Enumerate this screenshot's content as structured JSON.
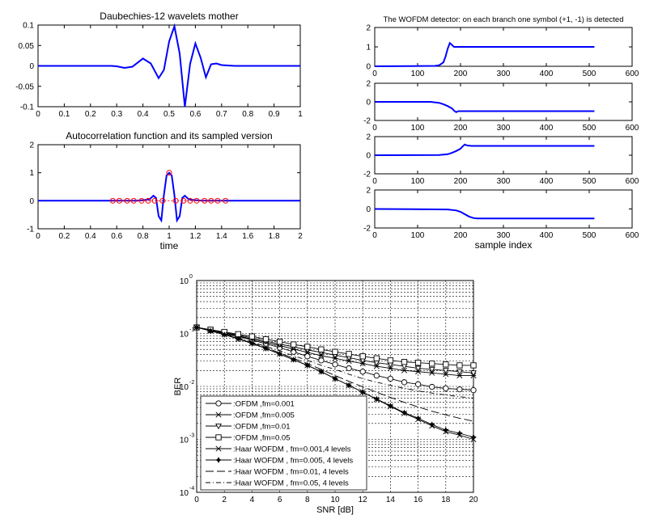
{
  "chart_data": [
    {
      "type": "line",
      "title": "Daubechies-12 wavelets mother",
      "xlim": [
        0,
        1
      ],
      "ylim": [
        -0.1,
        0.1
      ],
      "xticks": [
        "0",
        "0.1",
        "0.2",
        "0.3",
        "0.4",
        "0.5",
        "0.6",
        "0.7",
        "0.8",
        "0.9",
        "1"
      ],
      "yticks": [
        "-0.1",
        "-0.05",
        "0",
        "0.05",
        "0.1"
      ],
      "series": [
        {
          "color": "#0000ff",
          "x": [
            0,
            0.28,
            0.3,
            0.33,
            0.36,
            0.4,
            0.43,
            0.46,
            0.48,
            0.5,
            0.52,
            0.54,
            0.56,
            0.58,
            0.6,
            0.62,
            0.64,
            0.66,
            0.68,
            0.7,
            0.75,
            1
          ],
          "y": [
            0,
            0,
            -0.001,
            -0.005,
            -0.002,
            0.018,
            0.006,
            -0.03,
            -0.01,
            0.06,
            0.097,
            0.03,
            -0.1,
            0.005,
            0.055,
            0.02,
            -0.028,
            0.004,
            0.006,
            0.002,
            0,
            0
          ]
        }
      ]
    },
    {
      "type": "line",
      "title": "Autocorrelation function and its sampled version",
      "xlabel": "time",
      "xlim": [
        0,
        2
      ],
      "ylim": [
        -1,
        2
      ],
      "xticks": [
        "0",
        "0.2",
        "0.4",
        "0.6",
        "0.8",
        "1",
        "1.2",
        "1.4",
        "1.6",
        "1.8",
        "2"
      ],
      "yticks": [
        "-1",
        "0",
        "1",
        "2"
      ],
      "series": [
        {
          "color": "#0000ff",
          "x": [
            0,
            0.4,
            0.75,
            0.8,
            0.85,
            0.88,
            0.9,
            0.92,
            0.94,
            0.96,
            0.98,
            1.0,
            1.02,
            1.04,
            1.06,
            1.08,
            1.1,
            1.12,
            1.15,
            1.2,
            1.25,
            1.6,
            2
          ],
          "y": [
            0,
            0,
            0,
            0.02,
            0.05,
            0.18,
            0.1,
            -0.55,
            -0.7,
            0.2,
            0.9,
            1.0,
            0.9,
            0.2,
            -0.7,
            -0.55,
            0.1,
            0.18,
            0.05,
            0.02,
            0,
            0,
            0
          ]
        },
        {
          "color": "#ff0000",
          "marker": "o",
          "x": [
            0.57,
            0.62,
            0.68,
            0.73,
            0.79,
            0.84,
            0.89,
            0.95,
            1.0,
            1.05,
            1.11,
            1.16,
            1.21,
            1.27,
            1.32,
            1.37,
            1.43
          ],
          "y": [
            0,
            0,
            0,
            0,
            0,
            0,
            0,
            0,
            1,
            0,
            0,
            0,
            0,
            0,
            0,
            0,
            0
          ]
        }
      ]
    },
    {
      "type": "line",
      "title": "The WOFDM detector: on each branch one symbol (+1, -1) is detected",
      "xlim": [
        0,
        600
      ],
      "ylim": [
        0,
        2
      ],
      "xticks": [
        "0",
        "100",
        "200",
        "300",
        "400",
        "500",
        "600"
      ],
      "yticks": [
        "0",
        "1",
        "2"
      ],
      "series": [
        {
          "color": "#0000ff",
          "x": [
            0,
            140,
            150,
            160,
            165,
            170,
            175,
            180,
            185,
            190,
            200,
            512
          ],
          "y": [
            0,
            0.02,
            0.05,
            0.2,
            0.5,
            0.9,
            1.2,
            1.1,
            1.0,
            1.0,
            1.0,
            1.0
          ]
        }
      ]
    },
    {
      "type": "line",
      "xlim": [
        0,
        600
      ],
      "ylim": [
        -2,
        2
      ],
      "xticks": [
        "0",
        "100",
        "200",
        "300",
        "400",
        "500",
        "600"
      ],
      "yticks": [
        "-2",
        "0",
        "2"
      ],
      "series": [
        {
          "color": "#0000ff",
          "x": [
            0,
            130,
            150,
            160,
            170,
            180,
            185,
            190,
            195,
            200,
            210,
            512
          ],
          "y": [
            0,
            0,
            -0.1,
            -0.25,
            -0.45,
            -0.7,
            -0.95,
            -1.1,
            -1.0,
            -1.0,
            -1.0,
            -1.0
          ]
        }
      ]
    },
    {
      "type": "line",
      "xlim": [
        0,
        600
      ],
      "ylim": [
        -2,
        2
      ],
      "xticks": [
        "0",
        "100",
        "200",
        "300",
        "400",
        "500",
        "600"
      ],
      "yticks": [
        "-2",
        "0",
        "2"
      ],
      "series": [
        {
          "color": "#0000ff",
          "x": [
            0,
            150,
            170,
            180,
            190,
            200,
            205,
            210,
            215,
            225,
            512
          ],
          "y": [
            0,
            0.02,
            0.1,
            0.25,
            0.45,
            0.7,
            0.95,
            1.15,
            1.05,
            1.0,
            1.0
          ]
        }
      ]
    },
    {
      "type": "line",
      "xlabel": "sample index",
      "xlim": [
        0,
        600
      ],
      "ylim": [
        -2,
        2
      ],
      "xticks": [
        "0",
        "100",
        "200",
        "300",
        "400",
        "500",
        "600"
      ],
      "yticks": [
        "-2",
        "0",
        "2"
      ],
      "series": [
        {
          "color": "#0000ff",
          "x": [
            0,
            170,
            190,
            200,
            210,
            220,
            230,
            240,
            512
          ],
          "y": [
            0,
            -0.05,
            -0.15,
            -0.3,
            -0.55,
            -0.8,
            -0.95,
            -1.0,
            -1.0
          ]
        }
      ]
    },
    {
      "type": "line",
      "log_y": true,
      "grid": true,
      "xlabel": "SNR [dB]",
      "ylabel": "BER",
      "xlim": [
        0,
        20
      ],
      "ylim": [
        0.0001,
        1
      ],
      "xticks": [
        "0",
        "2",
        "4",
        "6",
        "8",
        "10",
        "12",
        "14",
        "16",
        "18",
        "20"
      ],
      "yticks": [
        "10",
        "10",
        "10",
        "10",
        "10"
      ],
      "ytick_exponents": [
        "-4",
        "-3",
        "-2",
        "-1",
        "0"
      ],
      "legend_position": "bottom-left",
      "x": [
        0,
        1,
        2,
        3,
        4,
        5,
        6,
        7,
        8,
        9,
        10,
        11,
        12,
        13,
        14,
        15,
        16,
        17,
        18,
        19,
        20
      ],
      "series": [
        {
          "name": ":OFDM ,fm=0.001",
          "marker": "circle",
          "dash": "solid",
          "values": [
            0.13,
            0.115,
            0.1,
            0.088,
            0.075,
            0.064,
            0.054,
            0.045,
            0.037,
            0.031,
            0.026,
            0.022,
            0.019,
            0.016,
            0.014,
            0.012,
            0.011,
            0.0098,
            0.0092,
            0.0088,
            0.0085
          ]
        },
        {
          "name": ":OFDM ,fm=0.005",
          "marker": "star",
          "dash": "solid",
          "values": [
            0.13,
            0.116,
            0.102,
            0.09,
            0.078,
            0.068,
            0.059,
            0.051,
            0.044,
            0.038,
            0.034,
            0.03,
            0.027,
            0.024,
            0.022,
            0.02,
            0.019,
            0.018,
            0.017,
            0.016,
            0.016
          ]
        },
        {
          "name": ":OFDM ,fm=0.01",
          "marker": "triangle-down",
          "dash": "solid",
          "values": [
            0.13,
            0.117,
            0.104,
            0.093,
            0.082,
            0.072,
            0.063,
            0.056,
            0.049,
            0.044,
            0.039,
            0.035,
            0.031,
            0.028,
            0.026,
            0.024,
            0.022,
            0.021,
            0.02,
            0.019,
            0.018
          ]
        },
        {
          "name": ":OFDM ,fm=0.05",
          "marker": "square",
          "dash": "solid",
          "values": [
            0.13,
            0.118,
            0.107,
            0.097,
            0.088,
            0.078,
            0.07,
            0.062,
            0.056,
            0.05,
            0.045,
            0.041,
            0.037,
            0.034,
            0.031,
            0.029,
            0.028,
            0.027,
            0.026,
            0.025,
            0.025
          ]
        },
        {
          "name": ":Haar WOFDM ,  fm=0.001,4 levels",
          "marker": "x",
          "dash": "solid",
          "values": [
            0.13,
            0.112,
            0.095,
            0.079,
            0.065,
            0.052,
            0.041,
            0.032,
            0.025,
            0.019,
            0.014,
            0.0105,
            0.0078,
            0.0057,
            0.0042,
            0.0031,
            0.0024,
            0.0018,
            0.0014,
            0.0012,
            0.001
          ]
        },
        {
          "name": ":Haar WOFDM ,  fm=0.005, 4 levels",
          "marker": "filled-star",
          "dash": "solid",
          "values": [
            0.13,
            0.112,
            0.095,
            0.079,
            0.065,
            0.052,
            0.041,
            0.032,
            0.025,
            0.019,
            0.014,
            0.0105,
            0.0078,
            0.0058,
            0.0043,
            0.0032,
            0.0025,
            0.0019,
            0.0015,
            0.0013,
            0.0011
          ]
        },
        {
          "name": ":Haar WOFDM ,  fm=0.01, 4 levels",
          "marker": "none",
          "dash": "long-dash",
          "values": [
            0.13,
            0.113,
            0.096,
            0.08,
            0.066,
            0.054,
            0.043,
            0.034,
            0.027,
            0.021,
            0.016,
            0.0125,
            0.0098,
            0.0078,
            0.0062,
            0.005,
            0.0041,
            0.0034,
            0.0029,
            0.0025,
            0.0022
          ]
        },
        {
          "name": ":Haar WOFDM ,  fm=0.05, 4 levels",
          "marker": "none",
          "dash": "dash-dot",
          "values": [
            0.13,
            0.114,
            0.098,
            0.083,
            0.069,
            0.057,
            0.047,
            0.038,
            0.031,
            0.025,
            0.021,
            0.017,
            0.014,
            0.012,
            0.0105,
            0.0092,
            0.0082,
            0.0075,
            0.0069,
            0.0064,
            0.006
          ]
        }
      ]
    }
  ]
}
